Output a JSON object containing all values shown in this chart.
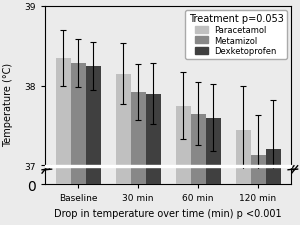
{
  "title": "Treatment p=0.053",
  "xlabel": "Drop in temperature over time (min) p <0.001",
  "ylabel": "Temperature (°C)",
  "categories": [
    "Baseline",
    "30 min",
    "60 min",
    "120 min"
  ],
  "series": {
    "Paracetamol": {
      "means": [
        38.35,
        38.15,
        37.75,
        37.45
      ],
      "errors": [
        0.35,
        0.38,
        0.42,
        0.55
      ],
      "color": "#c0c0c0"
    },
    "Metamizol": {
      "means": [
        38.28,
        37.92,
        37.65,
        37.13
      ],
      "errors": [
        0.3,
        0.35,
        0.4,
        0.5
      ],
      "color": "#888888"
    },
    "Dexketoprofen": {
      "means": [
        38.25,
        37.9,
        37.6,
        37.2
      ],
      "errors": [
        0.3,
        0.38,
        0.42,
        0.62
      ],
      "color": "#404040"
    }
  },
  "ylim_main_top": 39.0,
  "ylim_main_bottom": 36.95,
  "ylim_stub_top": 0.6,
  "ylim_stub_bottom": 0.0,
  "yticks_main": [
    37,
    38,
    39
  ],
  "bar_width": 0.25,
  "background_color": "#ebebeb",
  "legend_fontsize": 6,
  "axis_fontsize": 7,
  "tick_fontsize": 6.5,
  "title_fontsize": 7,
  "xlim_left": -0.55,
  "xlim_right": 3.55
}
